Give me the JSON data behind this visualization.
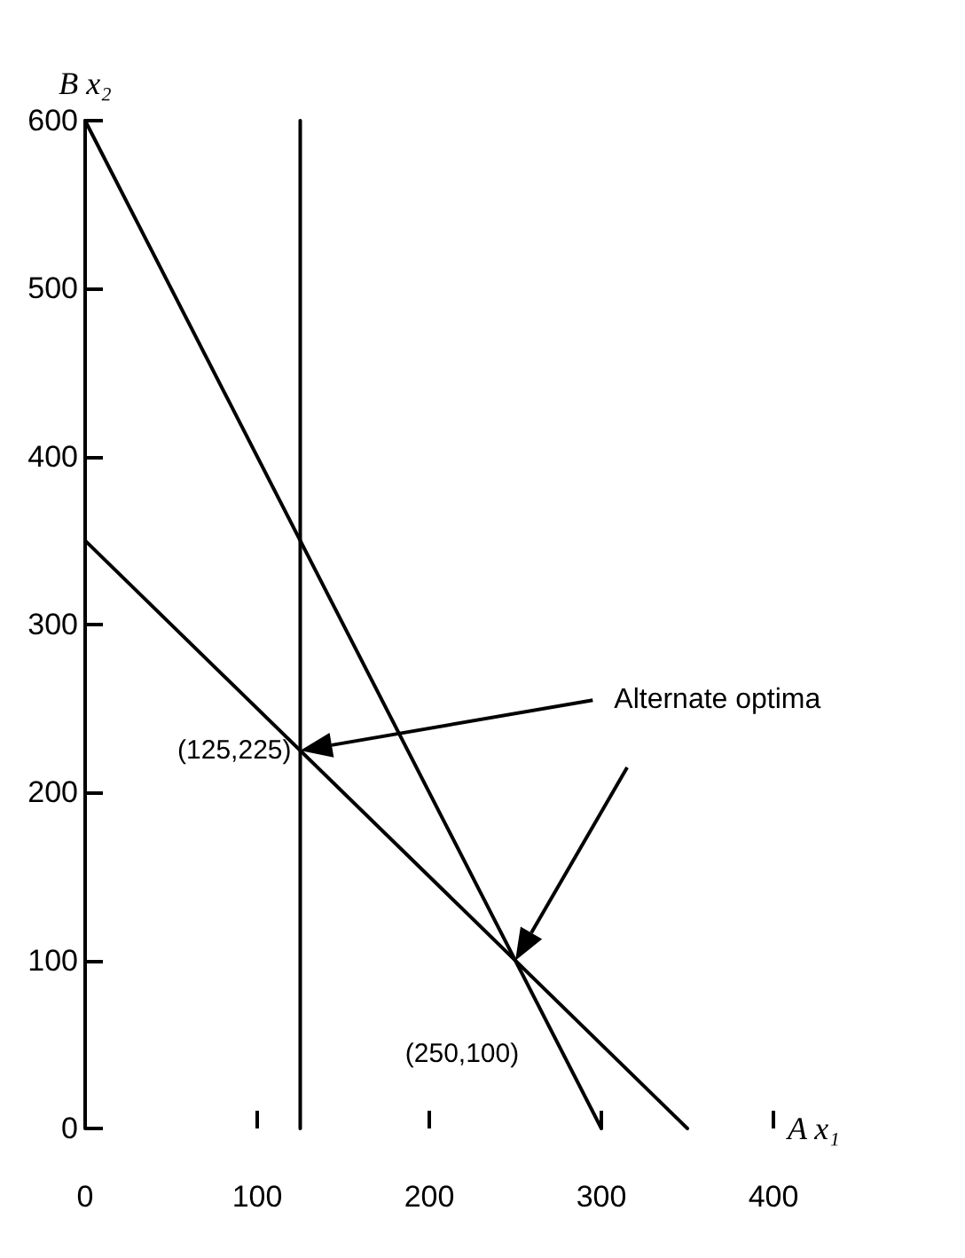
{
  "chart_data": {
    "type": "line",
    "xlabel": "A x₁",
    "ylabel": "B x₂",
    "series": [
      {
        "x": [
          125,
          125
        ],
        "values": [
          0,
          600
        ],
        "color": "#000000"
      },
      {
        "x": [
          0,
          300
        ],
        "values": [
          600,
          0
        ],
        "color": "#000000"
      },
      {
        "x": [
          0,
          350
        ],
        "values": [
          350,
          0
        ],
        "color": "#000000"
      }
    ],
    "annotations": [
      {
        "text": "(125,225)",
        "x": 125,
        "y": 225
      },
      {
        "text": "(250,100)",
        "x": 250,
        "y": 100
      },
      "Alternate optima"
    ],
    "xlim": [
      0,
      400
    ],
    "xticks": [
      0,
      100,
      200,
      300,
      400
    ],
    "ylim": [
      0,
      600
    ],
    "yticks": [
      0,
      100,
      200,
      300,
      400,
      500,
      600
    ],
    "grid": false,
    "marker": "none",
    "line_style": "solid"
  }
}
